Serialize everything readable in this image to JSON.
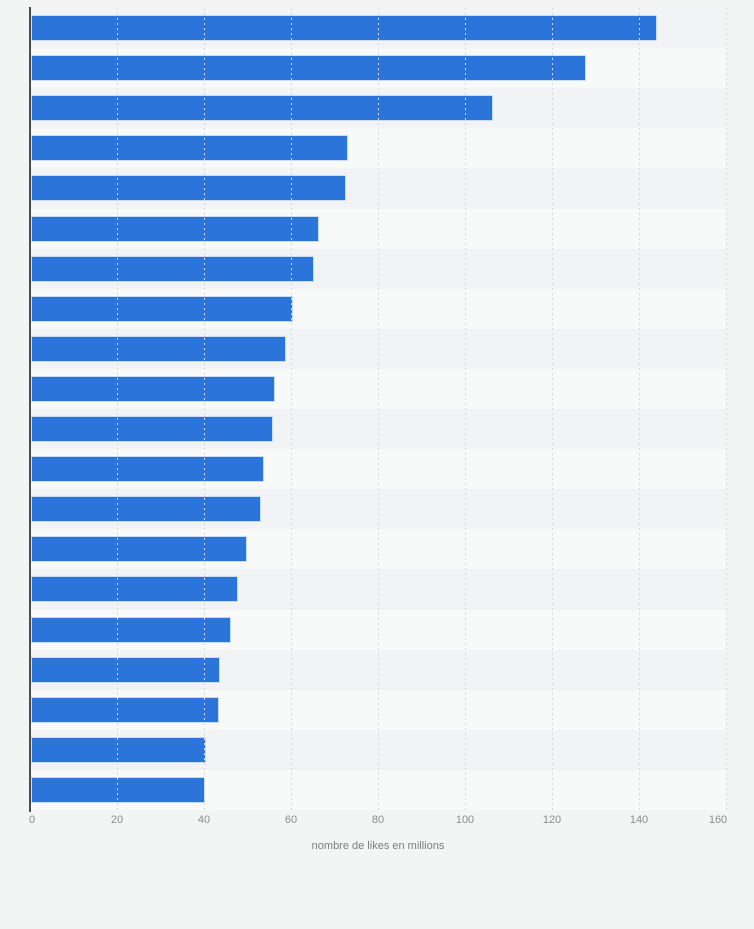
{
  "chart_data": {
    "type": "bar",
    "orientation": "horizontal",
    "title": "",
    "categories_visible": false,
    "values": [
      143.9,
      127.6,
      106.3,
      72.8,
      72.5,
      66.3,
      65.0,
      60.3,
      58.7,
      56.2,
      55.6,
      53.5,
      52.8,
      49.6,
      47.5,
      45.9,
      43.5,
      43.3,
      40.3,
      40.0
    ],
    "series": [
      {
        "name": "nombre de likes en millions",
        "values": [
          143.9,
          127.6,
          106.3,
          72.8,
          72.5,
          66.3,
          65.0,
          60.3,
          58.7,
          56.2,
          55.6,
          53.5,
          52.8,
          49.6,
          47.5,
          45.9,
          43.5,
          43.3,
          40.3,
          40.0
        ]
      }
    ],
    "xlabel": "nombre de likes en millions",
    "ylabel": "",
    "xlim": [
      0,
      160
    ],
    "x_ticks": [
      0,
      20,
      40,
      60,
      80,
      100,
      120,
      140,
      160
    ],
    "x_tick_labels": [
      "0",
      "20",
      "40",
      "60",
      "80",
      "100",
      "120",
      "140",
      "160"
    ],
    "grid": "vertical-dashed",
    "legend_position": "none"
  },
  "colors": {
    "bar": "#2b74d9",
    "bar_border": "rgba(255,255,255,0.75)",
    "background": "#f3f4f4",
    "row_dark": "#f2f3f4",
    "row_light": "#f8f9f9",
    "axis_line": "#4d4d4d",
    "gridline": "#d7d7d7",
    "tick_label": "#8b8b8b",
    "axis_title": "#7c7c7c"
  }
}
